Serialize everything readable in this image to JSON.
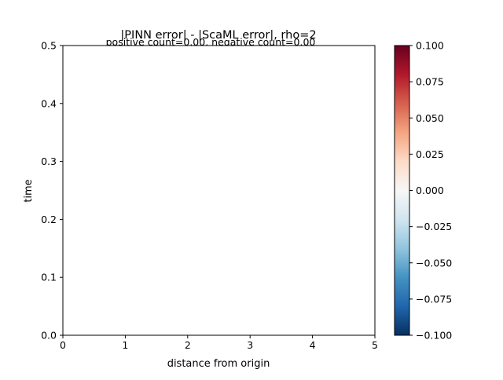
{
  "chart_data": {
    "type": "heatmap",
    "title": "|PINN error| - |ScaML error|, rho=2",
    "subtitle": "positive count=0.00, negative count=0.00",
    "xlabel": "distance from origin",
    "ylabel": "time",
    "xlim": [
      0,
      5
    ],
    "ylim": [
      0,
      0.5
    ],
    "xticks": [
      "0",
      "1",
      "2",
      "3",
      "4",
      "5"
    ],
    "yticks": [
      "0.0",
      "0.1",
      "0.2",
      "0.3",
      "0.4",
      "0.5"
    ],
    "values": [],
    "grid": false,
    "colorbar": {
      "colormap": "RdBu_r",
      "range": [
        -0.1,
        0.1
      ],
      "ticks": [
        "−0.100",
        "−0.075",
        "−0.050",
        "−0.025",
        "0.000",
        "0.025",
        "0.050",
        "0.075",
        "0.100"
      ],
      "colors": [
        "#053061",
        "#2166ac",
        "#4393c3",
        "#92c5de",
        "#d1e5f0",
        "#f7f7f7",
        "#fddbc7",
        "#f4a582",
        "#d6604d",
        "#b2182b",
        "#67001f"
      ]
    }
  }
}
